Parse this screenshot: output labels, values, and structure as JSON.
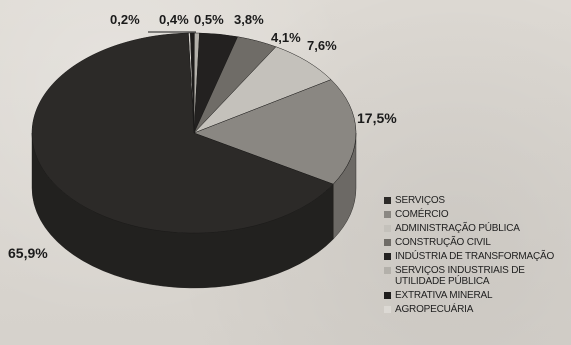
{
  "chart_data": {
    "type": "pie",
    "style": "3d",
    "title": "",
    "categories": [
      "SERVIÇOS",
      "COMÉRCIO",
      "ADMINISTRAÇÃO PÚBLICA",
      "CONSTRUÇÃO CIVIL",
      "INDÚSTRIA DE TRANSFORMAÇÃO",
      "SERVIÇOS INDUSTRIAIS DE UTILIDADE PÚBLICA",
      "EXTRATIVA MINERAL",
      "AGROPECUÁRIA"
    ],
    "values": [
      65.9,
      17.5,
      7.6,
      4.1,
      3.8,
      0.5,
      0.4,
      0.2
    ],
    "data_labels": [
      "65,9%",
      "17,5%",
      "7,6%",
      "4,1%",
      "3,8%",
      "0,5%",
      "0,4%",
      "0,2%"
    ],
    "colors": [
      "#2c2a28",
      "#8a8782",
      "#c4c1bb",
      "#6f6c67",
      "#232120",
      "#b3b0aa",
      "#1e1c1b",
      "#dcd9d4"
    ],
    "legend_position": "right"
  }
}
